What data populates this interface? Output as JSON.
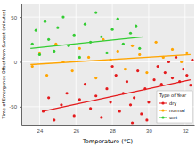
{
  "chart_data": {
    "type": "scatter",
    "x_label": "Temperature (°C)",
    "y_label": "Time of Emergence Offset from Sunset (minutes)",
    "xlim": [
      23,
      32.5
    ],
    "xticks": [
      24,
      26,
      28,
      30,
      32
    ],
    "ylim": [
      -70,
      65
    ],
    "yticks": [
      -50,
      0,
      50
    ],
    "grid": true,
    "legend": "bottom right",
    "legend_title": "Type of Year",
    "series": [
      {
        "name": "dry",
        "color": "#e41a1c",
        "marker": "circle",
        "x": [
          24.2,
          24.5,
          24.8,
          25.2,
          25.5,
          25.9,
          26.2,
          26.5,
          26.8,
          27.1,
          27.4,
          27.7,
          27.9,
          28.2,
          28.4,
          28.6,
          28.8,
          29.0,
          29.2,
          29.4,
          29.6,
          29.8,
          30.0,
          30.3,
          30.5,
          30.7,
          30.9,
          31.1,
          31.3,
          31.5,
          31.7,
          31.9,
          32.1,
          32.3,
          32.4,
          29.9,
          29.1,
          28.0
        ],
        "values": [
          -55,
          -40,
          -65,
          -48,
          -35,
          -60,
          -42,
          -25,
          -52,
          -38,
          -62,
          -30,
          -45,
          -15,
          -55,
          -35,
          -22,
          -48,
          -40,
          -10,
          -58,
          -30,
          -45,
          -20,
          -5,
          -25,
          -12,
          0,
          -18,
          5,
          -22,
          -8,
          -15,
          -26,
          2,
          -65,
          -68,
          -5
        ],
        "fit_x": [
          24.2,
          32.3
        ],
        "fit_values": [
          -55,
          -20
        ]
      },
      {
        "name": "normal",
        "color": "#ffa500",
        "marker": "circle",
        "x": [
          23.6,
          24.0,
          24.4,
          24.9,
          25.3,
          25.8,
          26.2,
          26.7,
          27.1,
          27.5,
          27.9,
          28.3,
          28.7,
          29.1,
          29.5,
          29.9,
          30.4,
          30.8,
          31.3,
          31.8,
          32.1
        ],
        "values": [
          -5,
          10,
          -15,
          20,
          0,
          -10,
          15,
          5,
          -18,
          25,
          2,
          12,
          -8,
          18,
          8,
          -12,
          22,
          5,
          14,
          0,
          10
        ],
        "fit_x": [
          23.5,
          32.3
        ],
        "fit_values": [
          -3,
          8
        ]
      },
      {
        "name": "wet",
        "color": "#33cc33",
        "marker": "circle",
        "x": [
          23.6,
          23.8,
          24.0,
          24.3,
          24.5,
          24.8,
          25.0,
          25.3,
          25.6,
          25.9,
          26.2,
          26.5,
          26.8,
          27.1,
          27.4,
          27.7,
          28.0,
          28.3,
          28.6,
          29.0,
          29.3,
          29.5
        ],
        "values": [
          20,
          35,
          8,
          45,
          25,
          12,
          38,
          50,
          18,
          30,
          5,
          42,
          22,
          55,
          28,
          10,
          36,
          48,
          20,
          32,
          40,
          15
        ],
        "fit_x": [
          23.5,
          29.7
        ],
        "fit_values": [
          15,
          28
        ]
      }
    ]
  }
}
